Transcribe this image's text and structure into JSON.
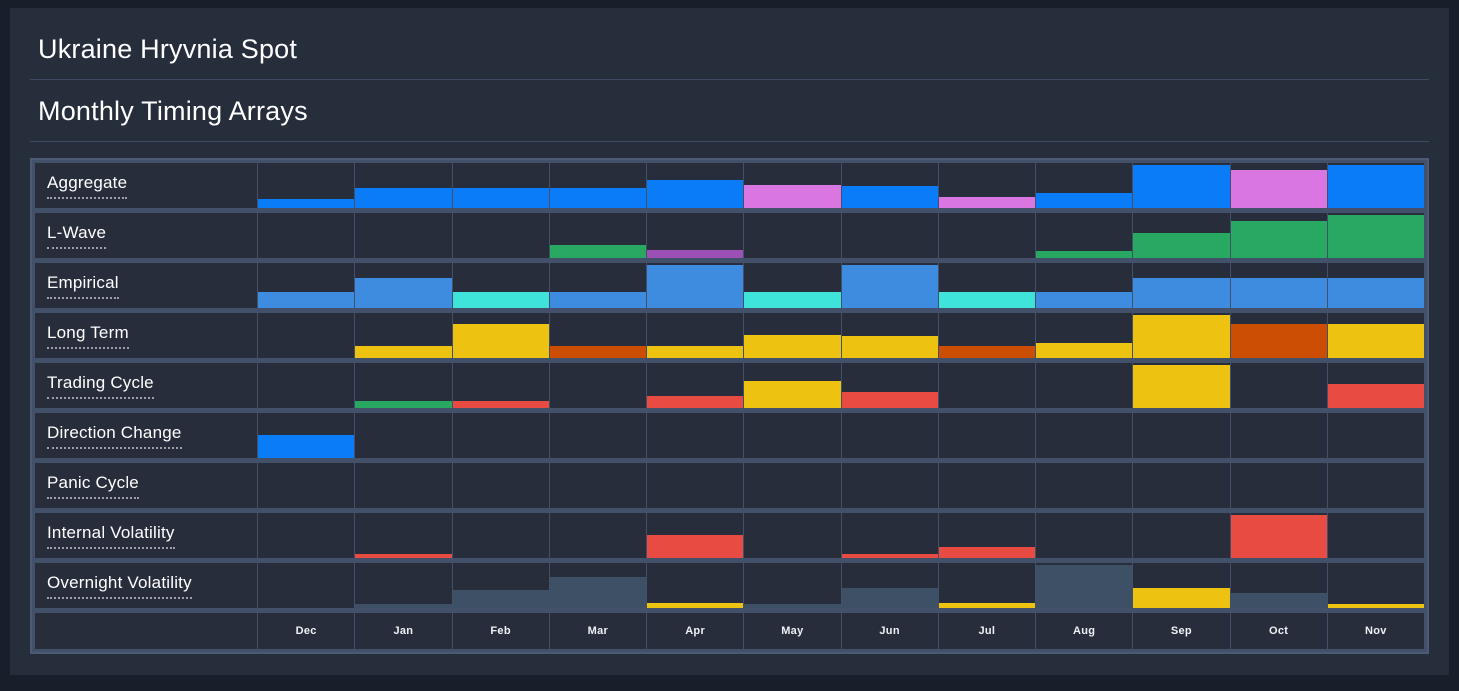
{
  "header": {
    "title": "Ukraine Hryvnia Spot",
    "subtitle": "Monthly Timing Arrays"
  },
  "colors": {
    "blue": "#0b7cf8",
    "medium_blue": "#3d8ce0",
    "cyan": "#3ee4da",
    "magenta": "#da76e2",
    "purple": "#9c4fb5",
    "green": "#28a961",
    "yellow": "#edc211",
    "orange": "#cc4e02",
    "red": "#e74b41",
    "slate": "#3d5066"
  },
  "chart_data": {
    "type": "heatmap",
    "title": "Ukraine Hryvnia Spot — Monthly Timing Arrays",
    "note": "Grid of bottom-anchored bars; h = bar height as fraction of cell height, c = palette color key, null = empty cell",
    "categories": [
      "Dec",
      "Jan",
      "Feb",
      "Mar",
      "Apr",
      "May",
      "Jun",
      "Jul",
      "Aug",
      "Sep",
      "Oct",
      "Nov"
    ],
    "series": [
      {
        "name": "Aggregate",
        "values": [
          {
            "c": "blue",
            "h": 0.2
          },
          {
            "c": "blue",
            "h": 0.44
          },
          {
            "c": "blue",
            "h": 0.44
          },
          {
            "c": "blue",
            "h": 0.44
          },
          {
            "c": "blue",
            "h": 0.62
          },
          {
            "c": "magenta",
            "h": 0.52
          },
          {
            "c": "blue",
            "h": 0.5
          },
          {
            "c": "magenta",
            "h": 0.25
          },
          {
            "c": "blue",
            "h": 0.34
          },
          {
            "c": "blue",
            "h": 0.96
          },
          {
            "c": "magenta",
            "h": 0.84
          },
          {
            "c": "blue",
            "h": 0.96
          }
        ]
      },
      {
        "name": "L-Wave",
        "values": [
          null,
          null,
          null,
          {
            "c": "green",
            "h": 0.3
          },
          {
            "c": "purple",
            "h": 0.18
          },
          null,
          null,
          null,
          {
            "c": "green",
            "h": 0.16
          },
          {
            "c": "green",
            "h": 0.56
          },
          {
            "c": "green",
            "h": 0.82
          },
          {
            "c": "green",
            "h": 0.96
          }
        ]
      },
      {
        "name": "Empirical",
        "values": [
          {
            "c": "medium_blue",
            "h": 0.36
          },
          {
            "c": "medium_blue",
            "h": 0.66
          },
          {
            "c": "cyan",
            "h": 0.36
          },
          {
            "c": "medium_blue",
            "h": 0.36
          },
          {
            "c": "medium_blue",
            "h": 0.96
          },
          {
            "c": "cyan",
            "h": 0.36
          },
          {
            "c": "medium_blue",
            "h": 0.96
          },
          {
            "c": "cyan",
            "h": 0.36
          },
          {
            "c": "medium_blue",
            "h": 0.36
          },
          {
            "c": "medium_blue",
            "h": 0.66
          },
          {
            "c": "medium_blue",
            "h": 0.66
          },
          {
            "c": "medium_blue",
            "h": 0.66
          }
        ]
      },
      {
        "name": "Long Term",
        "values": [
          null,
          {
            "c": "yellow",
            "h": 0.27
          },
          {
            "c": "yellow",
            "h": 0.76
          },
          {
            "c": "orange",
            "h": 0.27
          },
          {
            "c": "yellow",
            "h": 0.27
          },
          {
            "c": "yellow",
            "h": 0.52
          },
          {
            "c": "yellow",
            "h": 0.48
          },
          {
            "c": "orange",
            "h": 0.27
          },
          {
            "c": "yellow",
            "h": 0.34
          },
          {
            "c": "yellow",
            "h": 0.96
          },
          {
            "c": "orange",
            "h": 0.76
          },
          {
            "c": "yellow",
            "h": 0.76
          }
        ]
      },
      {
        "name": "Trading Cycle",
        "values": [
          null,
          {
            "c": "green",
            "h": 0.16
          },
          {
            "c": "red",
            "h": 0.16
          },
          null,
          {
            "c": "red",
            "h": 0.27
          },
          {
            "c": "yellow",
            "h": 0.6
          },
          {
            "c": "red",
            "h": 0.36
          },
          null,
          null,
          {
            "c": "yellow",
            "h": 0.96
          },
          null,
          {
            "c": "red",
            "h": 0.54
          }
        ]
      },
      {
        "name": "Direction Change",
        "values": [
          {
            "c": "blue",
            "h": 0.52
          },
          null,
          null,
          null,
          null,
          null,
          null,
          null,
          null,
          null,
          null,
          null
        ]
      },
      {
        "name": "Panic Cycle",
        "values": [
          null,
          null,
          null,
          null,
          null,
          null,
          null,
          null,
          null,
          null,
          null,
          null
        ]
      },
      {
        "name": "Internal Volatility",
        "values": [
          null,
          {
            "c": "red",
            "h": 0.1
          },
          null,
          null,
          {
            "c": "red",
            "h": 0.52
          },
          null,
          {
            "c": "red",
            "h": 0.08
          },
          {
            "c": "red",
            "h": 0.24
          },
          null,
          null,
          {
            "c": "red",
            "h": 0.96
          },
          null
        ]
      },
      {
        "name": "Overnight Volatility",
        "values": [
          null,
          {
            "c": "slate",
            "h": 0.1
          },
          {
            "c": "slate",
            "h": 0.4
          },
          {
            "c": "slate",
            "h": 0.7
          },
          {
            "c": "yellow",
            "h": 0.12
          },
          {
            "c": "slate",
            "h": 0.08
          },
          {
            "c": "slate",
            "h": 0.44
          },
          {
            "c": "yellow",
            "h": 0.12
          },
          {
            "c": "slate",
            "h": 0.95
          },
          {
            "c": "yellow",
            "h": 0.44
          },
          {
            "c": "slate",
            "h": 0.34
          },
          {
            "c": "yellow",
            "h": 0.1
          }
        ]
      }
    ]
  }
}
